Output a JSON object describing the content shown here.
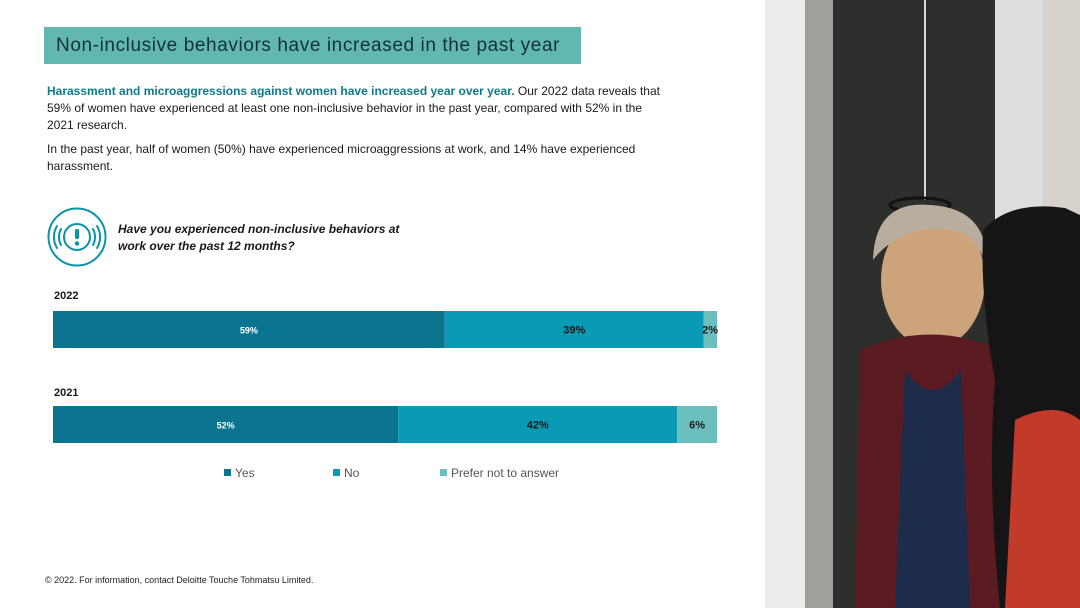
{
  "title": "Non-inclusive behaviors have increased in the past year",
  "intro": {
    "lead": "Harassment and microaggressions against women have increased year over year.",
    "rest": " Our 2022 data reveals that 59% of women have experienced at least one non-inclusive behavior in the past year, compared with 52% in the 2021 research.",
    "p2": "In the past year, half of women (50%) have experienced microaggressions at work, and 14% have experienced harassment."
  },
  "question": "Have you experienced non-inclusive behaviors at work over the past 12 months?",
  "footer": "© 2022. For information, contact Deloitte Touche Tohmatsu Limited.",
  "icons": {
    "question_icon": "alert-exclamation-icon"
  },
  "colors": {
    "yes": "#0b7591",
    "no": "#0a9ab5",
    "prefer": "#6bbfbf",
    "title_bg": "#62b8b1",
    "lead_text": "#0e7a8a"
  },
  "chart_data": {
    "type": "bar",
    "orientation": "horizontal",
    "stacked": true,
    "percent": true,
    "categories": [
      "2022",
      "2021"
    ],
    "series": [
      {
        "name": "Yes",
        "values": [
          59,
          52
        ],
        "labels": [
          "59%",
          "52%"
        ],
        "color": "#0b7591"
      },
      {
        "name": "No",
        "values": [
          39,
          42
        ],
        "labels": [
          "39%",
          "42%"
        ],
        "color": "#0a9ab5"
      },
      {
        "name": "Prefer not to answer",
        "values": [
          2,
          6
        ],
        "labels": [
          "2%",
          "6%"
        ],
        "color": "#6bbfbf"
      }
    ],
    "xlim": [
      0,
      100
    ],
    "legend": "bottom",
    "grid": false
  }
}
